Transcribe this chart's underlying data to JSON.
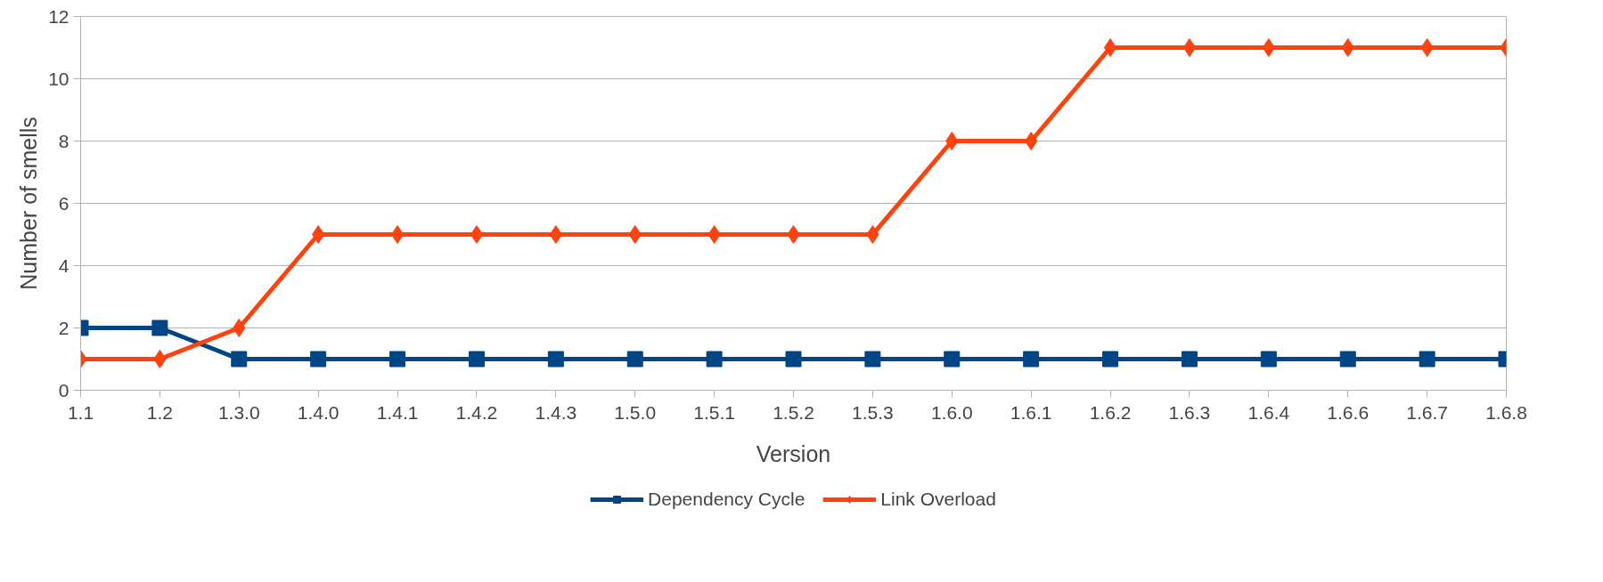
{
  "chart_data": {
    "type": "line",
    "xlabel": "Version",
    "ylabel": "Number of smells",
    "categories": [
      "1.1",
      "1.2",
      "1.3.0",
      "1.4.0",
      "1.4.1",
      "1.4.2",
      "1.4.3",
      "1.5.0",
      "1.5.1",
      "1.5.2",
      "1.5.3",
      "1.6.0",
      "1.6.1",
      "1.6.2",
      "1.6.3",
      "1.6.4",
      "1.6.6",
      "1.6.7",
      "1.6.8"
    ],
    "series": [
      {
        "name": "Dependency Cycle",
        "color": "#004586",
        "marker": "square",
        "values": [
          2,
          2,
          1,
          1,
          1,
          1,
          1,
          1,
          1,
          1,
          1,
          1,
          1,
          1,
          1,
          1,
          1,
          1,
          1
        ]
      },
      {
        "name": "Link Overload",
        "color": "#ff420e",
        "marker": "diamond",
        "values": [
          1,
          1,
          2,
          5,
          5,
          5,
          5,
          5,
          5,
          5,
          5,
          8,
          8,
          11,
          11,
          11,
          11,
          11,
          11
        ]
      }
    ],
    "ylim": [
      0,
      12
    ],
    "yticks": [
      0,
      2,
      4,
      6,
      8,
      10,
      12
    ],
    "grid": "y",
    "legend": "bottom",
    "line_style": "solid"
  }
}
